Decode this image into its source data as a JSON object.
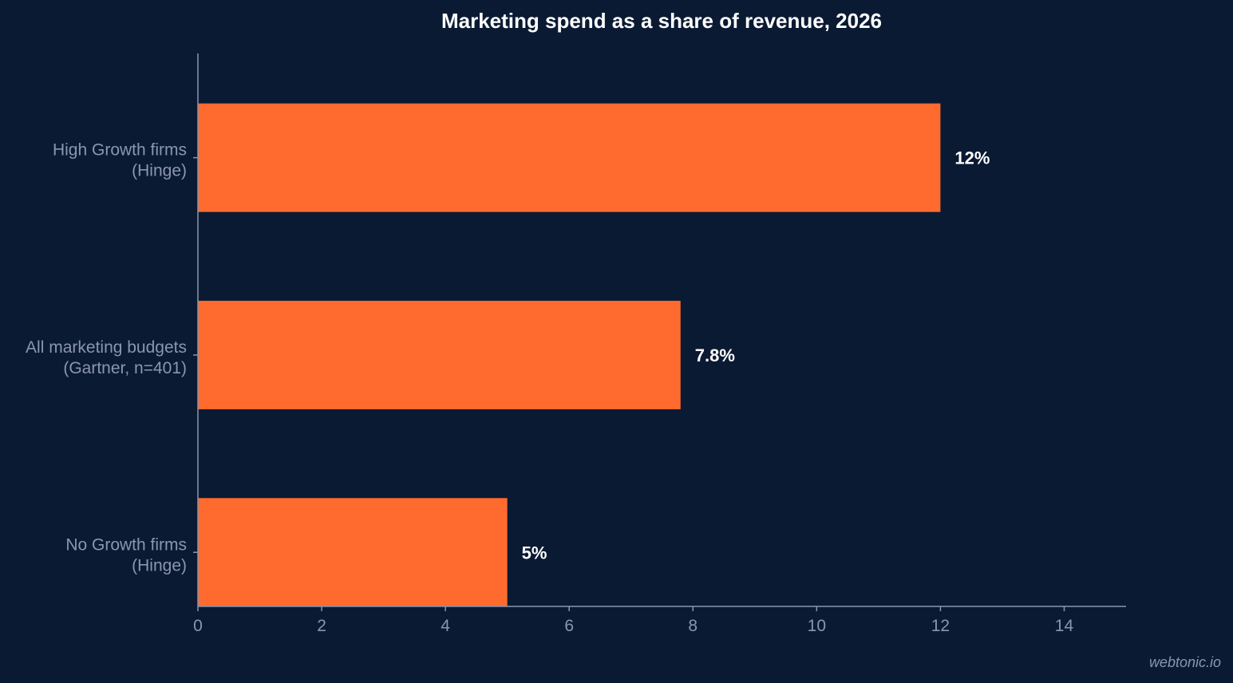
{
  "chart_data": {
    "type": "bar",
    "orientation": "horizontal",
    "title": "Marketing spend as a share of revenue, 2026",
    "xlabel": "",
    "ylabel": "",
    "categories": [
      [
        "High Growth firms",
        "(Hinge)"
      ],
      [
        "All marketing budgets",
        "(Gartner, n=401)"
      ],
      [
        "No Growth firms",
        "(Hinge)"
      ]
    ],
    "values": [
      12,
      7.8,
      5
    ],
    "data_labels": [
      "12%",
      "7.8%",
      "5%"
    ],
    "xlim": [
      0,
      15
    ],
    "xticks": [
      0,
      2,
      4,
      6,
      8,
      10,
      12,
      14
    ],
    "grid": false,
    "legend": "none"
  },
  "watermark": "webtonic.io",
  "colors": {
    "background": "#0b1a33",
    "bar": "#ff6b2e",
    "axis": "#8a96ad",
    "tick_text": "#8a96ad",
    "label_text": "#8a96ad",
    "title_text": "#ffffff",
    "data_label_text": "#ffffff",
    "watermark_text": "#8a96ad"
  }
}
